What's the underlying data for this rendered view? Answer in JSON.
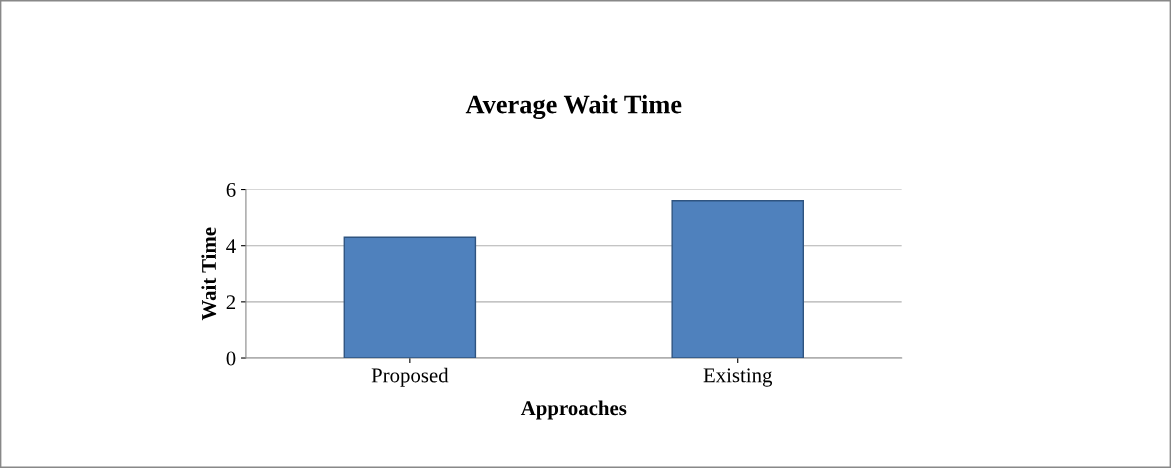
{
  "chart_data": {
    "type": "bar",
    "title": "Average Wait Time",
    "xlabel": "Approaches",
    "ylabel": "Wait Time",
    "categories": [
      "Proposed",
      "Existing"
    ],
    "values": [
      4.3,
      5.6
    ],
    "color": "#4f81bd",
    "ylim": [
      0,
      6
    ],
    "yticks": [
      0,
      2,
      4,
      6
    ],
    "grid": "y"
  }
}
